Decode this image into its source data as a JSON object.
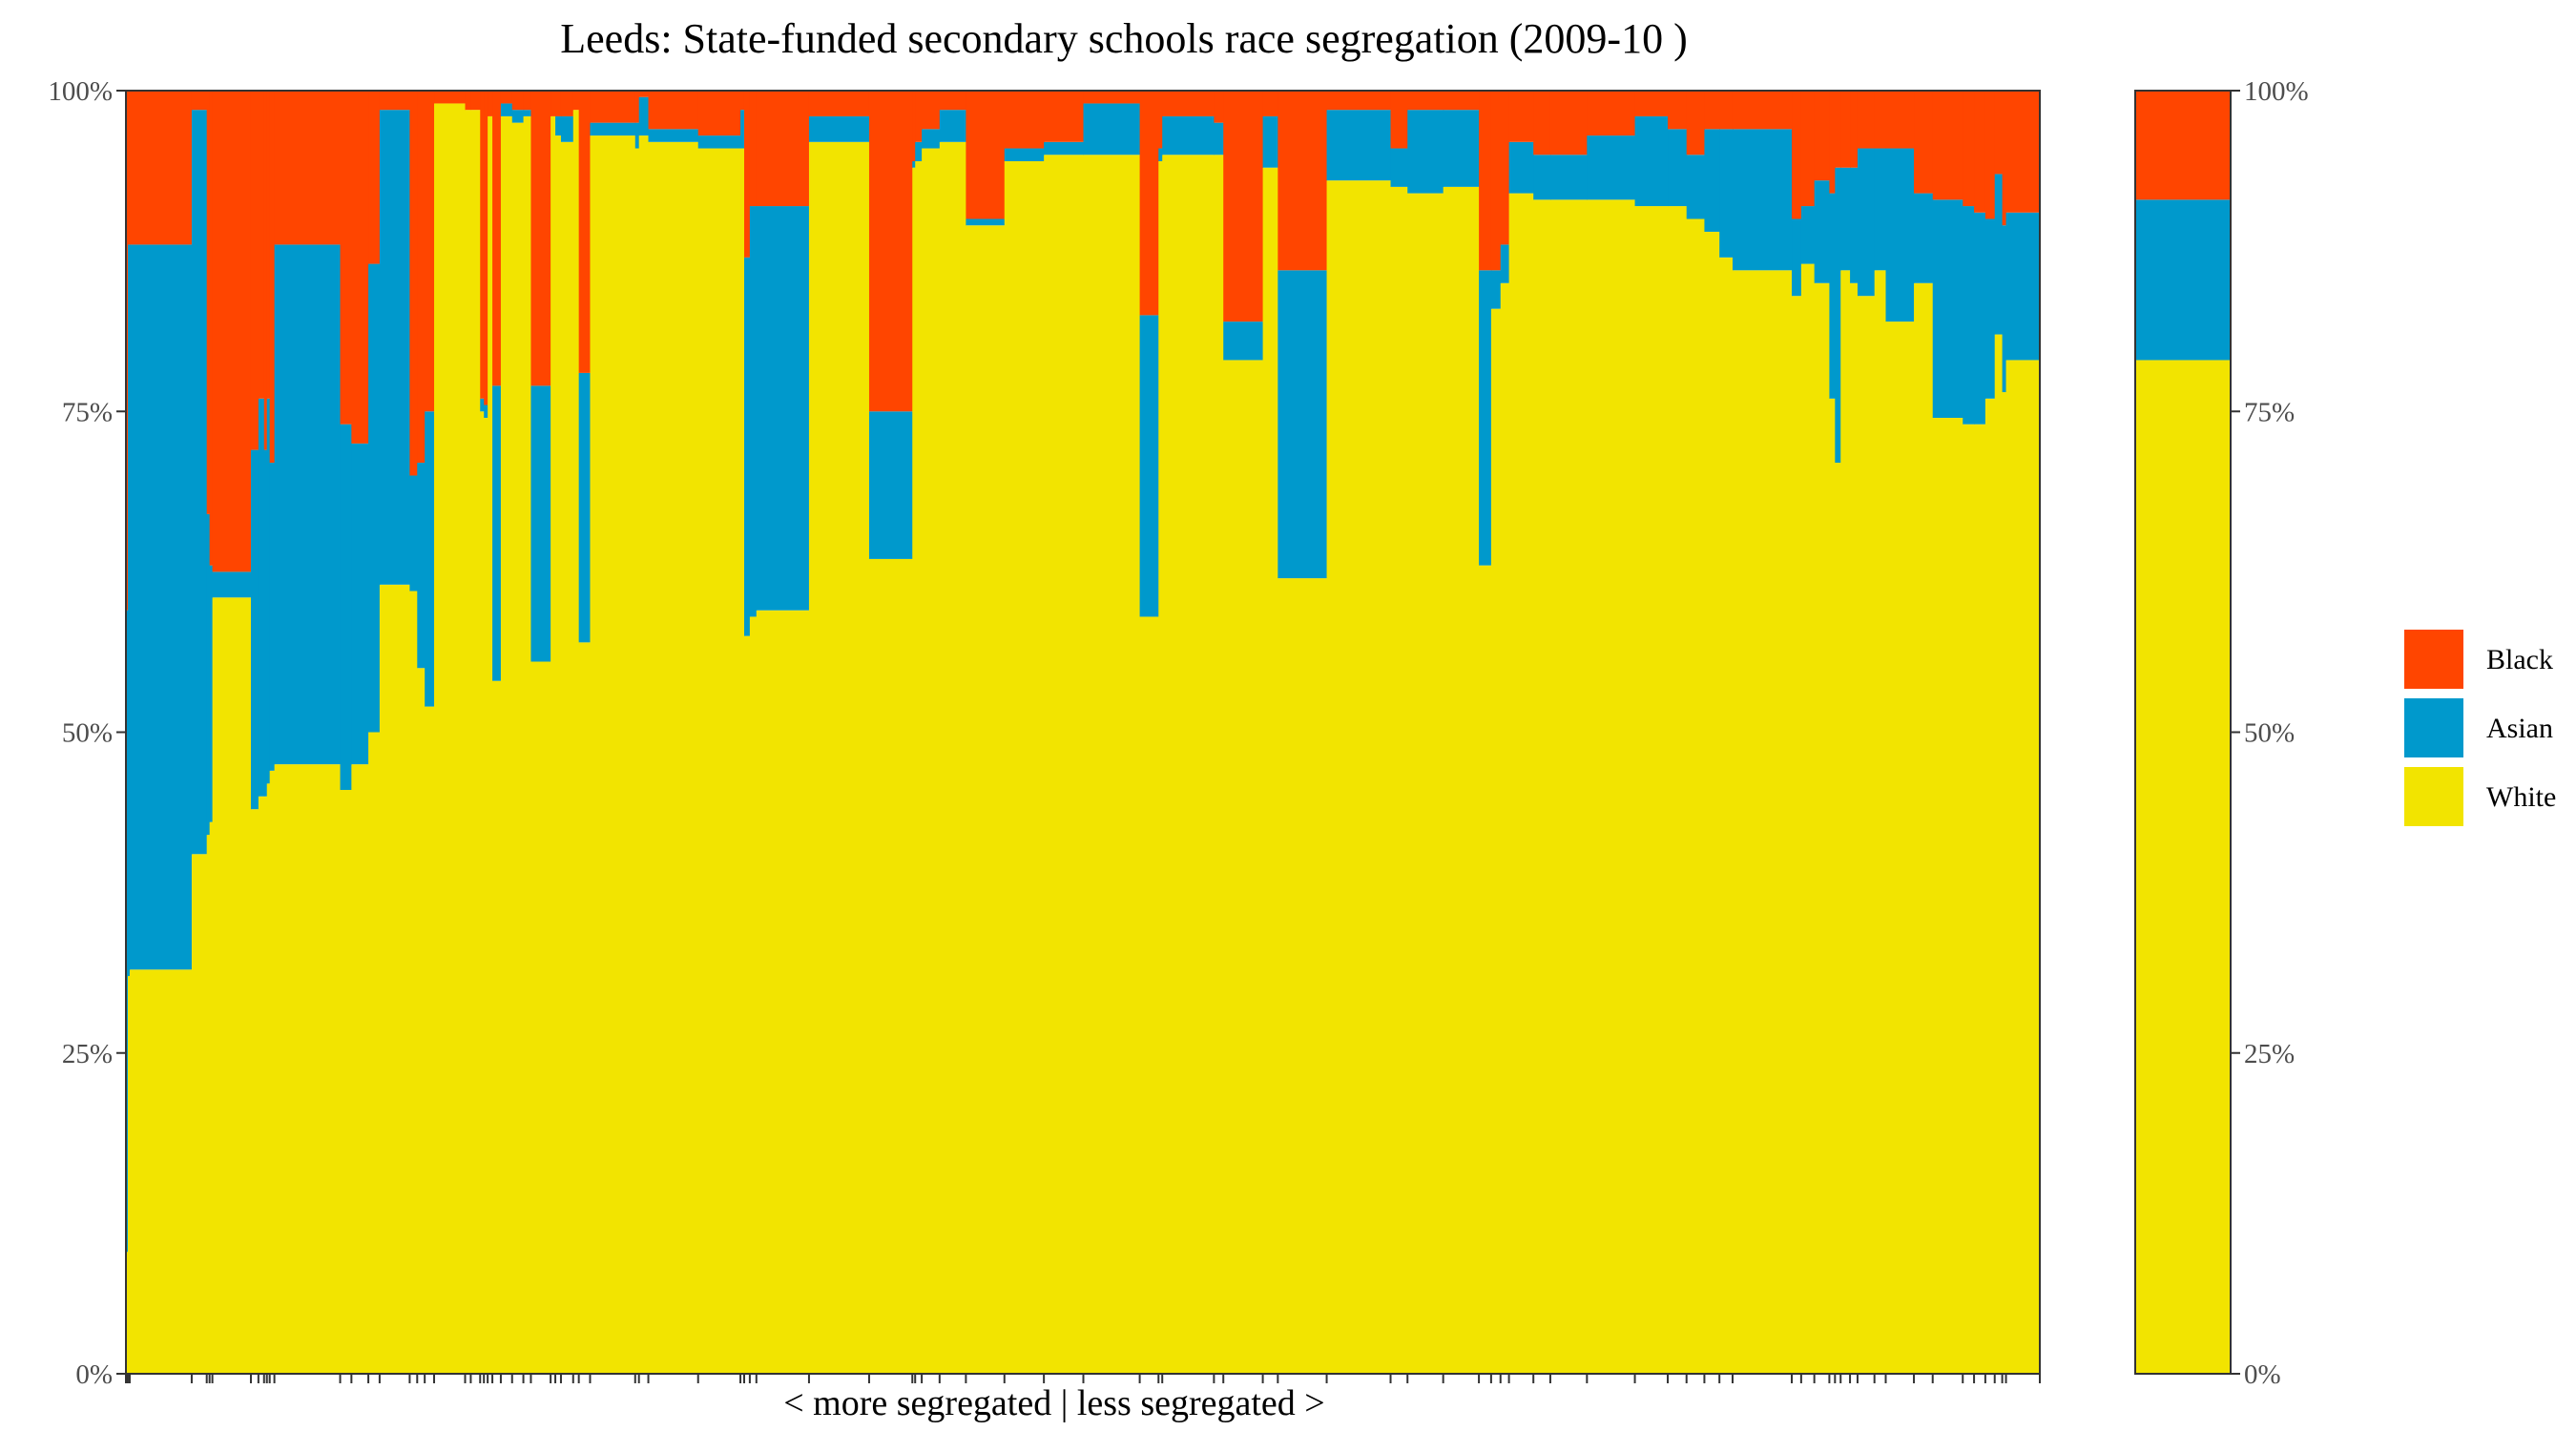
{
  "chart_data": {
    "type": "bar",
    "subtype": "stacked-variable-width (marimekko)",
    "title": "Leeds: State-funded secondary schools race segregation (2009-10 )",
    "xlabel": "< more segregated | less segregated >",
    "ylabel": "",
    "ylim": [
      0,
      100
    ],
    "y_ticks": [
      "0%",
      "25%",
      "50%",
      "75%",
      "100%"
    ],
    "y_tick_values": [
      0,
      25,
      50,
      75,
      100
    ],
    "grid": false,
    "legend_position": "right",
    "legend": [
      {
        "name": "Black",
        "color": "#FF4500"
      },
      {
        "name": "Asian",
        "color": "#0099CC"
      },
      {
        "name": "White",
        "color": "#F2E400"
      }
    ],
    "series_order": [
      "White",
      "Asian",
      "Black"
    ],
    "colors": {
      "White": "#F2E400",
      "Asian": "#0099CC",
      "Black": "#FF4500"
    },
    "schools": [
      {
        "w": 2,
        "white": 9.5,
        "asian": 50,
        "black": 40.5
      },
      {
        "w": 2,
        "white": 31,
        "asian": 57,
        "black": 12
      },
      {
        "w": 66,
        "white": 31.5,
        "asian": 56.5,
        "black": 12
      },
      {
        "w": 16,
        "white": 40.5,
        "asian": 58,
        "black": 1.5
      },
      {
        "w": 3,
        "white": 42,
        "asian": 25,
        "black": 33
      },
      {
        "w": 3,
        "white": 43,
        "asian": 20,
        "black": 37
      },
      {
        "w": 41,
        "white": 60.5,
        "asian": 2,
        "black": 37.5
      },
      {
        "w": 8,
        "white": 44,
        "asian": 28,
        "black": 28
      },
      {
        "w": 6,
        "white": 45,
        "asian": 31,
        "black": 24
      },
      {
        "w": 3,
        "white": 45,
        "asian": 27,
        "black": 28
      },
      {
        "w": 3,
        "white": 46,
        "asian": 30,
        "black": 24
      },
      {
        "w": 5,
        "white": 47,
        "asian": 24,
        "black": 29
      },
      {
        "w": 70,
        "white": 47.5,
        "asian": 40.5,
        "black": 12
      },
      {
        "w": 12,
        "white": 45.5,
        "asian": 28.5,
        "black": 26
      },
      {
        "w": 18,
        "white": 47.5,
        "asian": 25,
        "black": 27.5
      },
      {
        "w": 12,
        "white": 50,
        "asian": 36.5,
        "black": 13.5
      },
      {
        "w": 32,
        "white": 61.5,
        "asian": 37,
        "black": 1.5
      },
      {
        "w": 8,
        "white": 61,
        "asian": 9,
        "black": 30
      },
      {
        "w": 8,
        "white": 55,
        "asian": 16,
        "black": 29
      },
      {
        "w": 10,
        "white": 52,
        "asian": 23,
        "black": 25
      },
      {
        "w": 33,
        "white": 99,
        "asian": 0,
        "black": 1
      },
      {
        "w": 6,
        "white": 98.5,
        "asian": 0,
        "black": 1.5
      },
      {
        "w": 10,
        "white": 98.5,
        "asian": 0,
        "black": 1.5
      },
      {
        "w": 4,
        "white": 75,
        "asian": 1,
        "black": 24
      },
      {
        "w": 4,
        "white": 74.5,
        "asian": 1,
        "black": 24.5
      },
      {
        "w": 5,
        "white": 98,
        "asian": 0,
        "black": 2
      },
      {
        "w": 9,
        "white": 54,
        "asian": 23,
        "black": 23
      },
      {
        "w": 12,
        "white": 98,
        "asian": 1,
        "black": 1
      },
      {
        "w": 12,
        "white": 97.5,
        "asian": 1,
        "black": 1.5
      },
      {
        "w": 8,
        "white": 98,
        "asian": 0.5,
        "black": 1.5
      },
      {
        "w": 21,
        "white": 55.5,
        "asian": 21.5,
        "black": 23
      },
      {
        "w": 5,
        "white": 98,
        "asian": 0,
        "black": 2
      },
      {
        "w": 6,
        "white": 96.5,
        "asian": 1.5,
        "black": 2
      },
      {
        "w": 13,
        "white": 96,
        "asian": 2,
        "black": 2
      },
      {
        "w": 6,
        "white": 98.5,
        "asian": 0,
        "black": 1.5
      },
      {
        "w": 12,
        "white": 57,
        "asian": 21,
        "black": 22
      },
      {
        "w": 48,
        "white": 96.5,
        "asian": 1,
        "black": 2.5
      },
      {
        "w": 4,
        "white": 95.5,
        "asian": 2,
        "black": 2.5
      },
      {
        "w": 10,
        "white": 96.5,
        "asian": 3,
        "black": 0.5
      },
      {
        "w": 53,
        "white": 96,
        "asian": 1,
        "black": 3
      },
      {
        "w": 45,
        "white": 95.5,
        "asian": 1,
        "black": 3.5
      },
      {
        "w": 4,
        "white": 95.5,
        "asian": 3,
        "black": 1.5
      },
      {
        "w": 6,
        "white": 57.5,
        "asian": 29.5,
        "black": 13
      },
      {
        "w": 7,
        "white": 59,
        "asian": 32,
        "black": 9
      },
      {
        "w": 56,
        "white": 59.5,
        "asian": 31.5,
        "black": 9
      },
      {
        "w": 64,
        "white": 96,
        "asian": 2,
        "black": 2
      },
      {
        "w": 46,
        "white": 63.5,
        "asian": 11.5,
        "black": 25
      },
      {
        "w": 3,
        "white": 94,
        "asian": 0.5,
        "black": 5.5
      },
      {
        "w": 7,
        "white": 94.5,
        "asian": 1.5,
        "black": 4
      },
      {
        "w": 19,
        "white": 95.5,
        "asian": 1.5,
        "black": 3
      },
      {
        "w": 28,
        "white": 96,
        "asian": 2.5,
        "black": 1.5
      },
      {
        "w": 41,
        "white": 89.5,
        "asian": 0.5,
        "black": 10
      },
      {
        "w": 42,
        "white": 94.5,
        "asian": 1,
        "black": 4.5
      },
      {
        "w": 42,
        "white": 95,
        "asian": 1,
        "black": 4
      },
      {
        "w": 60,
        "white": 95,
        "asian": 4,
        "black": 1
      },
      {
        "w": 20,
        "white": 59,
        "asian": 23.5,
        "black": 17.5
      },
      {
        "w": 4,
        "white": 94.5,
        "asian": 1,
        "black": 4.5
      },
      {
        "w": 55,
        "white": 95,
        "asian": 3,
        "black": 2
      },
      {
        "w": 10,
        "white": 95,
        "asian": 2.5,
        "black": 2.5
      },
      {
        "w": 42,
        "white": 79,
        "asian": 3,
        "black": 18
      },
      {
        "w": 16,
        "white": 94,
        "asian": 4,
        "black": 2
      },
      {
        "w": 52,
        "white": 62,
        "asian": 24,
        "black": 14
      },
      {
        "w": 68,
        "white": 93,
        "asian": 5.5,
        "black": 1.5
      },
      {
        "w": 18,
        "white": 92.5,
        "asian": 3,
        "black": 4.5
      },
      {
        "w": 38,
        "white": 92,
        "asian": 6.5,
        "black": 1.5
      },
      {
        "w": 38,
        "white": 92.5,
        "asian": 6,
        "black": 1.5
      },
      {
        "w": 13,
        "white": 63,
        "asian": 23,
        "black": 14
      },
      {
        "w": 10,
        "white": 83,
        "asian": 3,
        "black": 14
      },
      {
        "w": 9,
        "white": 85,
        "asian": 3,
        "black": 12
      },
      {
        "w": 26,
        "white": 92,
        "asian": 4,
        "black": 4
      },
      {
        "w": 18,
        "white": 91.5,
        "asian": 3.5,
        "black": 5
      },
      {
        "w": 39,
        "white": 91.5,
        "asian": 3.5,
        "black": 5
      },
      {
        "w": 51,
        "white": 91.5,
        "asian": 5,
        "black": 3.5
      },
      {
        "w": 35,
        "white": 91,
        "asian": 7,
        "black": 2
      },
      {
        "w": 20,
        "white": 91,
        "asian": 6,
        "black": 3
      },
      {
        "w": 19,
        "white": 90,
        "asian": 5,
        "black": 5
      },
      {
        "w": 16,
        "white": 89,
        "asian": 8,
        "black": 3
      },
      {
        "w": 14,
        "white": 87,
        "asian": 10,
        "black": 3
      },
      {
        "w": 63,
        "white": 86,
        "asian": 11,
        "black": 3
      },
      {
        "w": 10,
        "white": 84,
        "asian": 6,
        "black": 10
      },
      {
        "w": 14,
        "white": 86.5,
        "asian": 4.5,
        "black": 9
      },
      {
        "w": 16,
        "white": 85,
        "asian": 8,
        "black": 7
      },
      {
        "w": 6,
        "white": 76,
        "asian": 16,
        "black": 8
      },
      {
        "w": 6,
        "white": 71,
        "asian": 23,
        "black": 6
      },
      {
        "w": 10,
        "white": 86,
        "asian": 8,
        "black": 6
      },
      {
        "w": 8,
        "white": 85,
        "asian": 9,
        "black": 6
      },
      {
        "w": 18,
        "white": 84,
        "asian": 11.5,
        "black": 4.5
      },
      {
        "w": 12,
        "white": 86,
        "asian": 9.5,
        "black": 4.5
      },
      {
        "w": 30,
        "white": 82,
        "asian": 13.5,
        "black": 4.5
      },
      {
        "w": 20,
        "white": 85,
        "asian": 7,
        "black": 8
      },
      {
        "w": 32,
        "white": 74.5,
        "asian": 17,
        "black": 8.5
      },
      {
        "w": 12,
        "white": 74,
        "asian": 17,
        "black": 9
      },
      {
        "w": 12,
        "white": 74,
        "asian": 16.5,
        "black": 9.5
      },
      {
        "w": 10,
        "white": 76,
        "asian": 14,
        "black": 10
      },
      {
        "w": 8,
        "white": 81,
        "asian": 12.5,
        "black": 6.5
      },
      {
        "w": 4,
        "white": 76.5,
        "asian": 13,
        "black": 10.5
      },
      {
        "w": 36,
        "white": 79,
        "asian": 11.5,
        "black": 9.5
      }
    ],
    "overall": {
      "white": 79,
      "asian": 12.5,
      "black": 8.5
    }
  }
}
